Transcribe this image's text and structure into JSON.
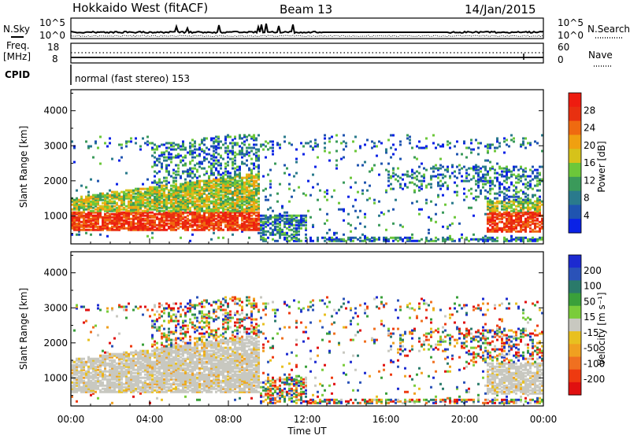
{
  "header": {
    "station": "Hokkaido West (fitACF)",
    "beam": "Beam 13",
    "date": "14/Jan/2015"
  },
  "noise_panel": {
    "left_label": "N.Sky",
    "right_label": "N.Search",
    "left_ticks": [
      "10^5",
      "10^0"
    ],
    "right_ticks": [
      "10^5",
      "10^0"
    ]
  },
  "freq_panel": {
    "label_line1": "Freq.",
    "label_line2": "[MHz]",
    "left_ticks": [
      "18",
      "8"
    ],
    "right_ticks": [
      "60",
      "0"
    ],
    "right_label": "Nave"
  },
  "cpid_panel": {
    "label": "CPID",
    "text": "normal (fast stereo) 153"
  },
  "chart_data": [
    {
      "type": "heatmap",
      "quantity": "Power",
      "ylabel": "Slant Range [km]",
      "yticks": [
        "1000",
        "2000",
        "3000",
        "4000"
      ],
      "ylim": [
        200,
        4600
      ],
      "colorbar": {
        "label": "Power [dB]",
        "ticks": [
          "4",
          "8",
          "12",
          "16",
          "20",
          "24",
          "28"
        ],
        "colors": [
          "#0a22e6",
          "#1f54b0",
          "#2a7a8c",
          "#3a9a5a",
          "#6cc73a",
          "#d6c21a",
          "#f0a010",
          "#ef6a10",
          "#e83010",
          "#ee1c10"
        ]
      }
    },
    {
      "type": "heatmap",
      "quantity": "Velocity",
      "ylabel": "Slant Range [km]",
      "yticks": [
        "1000",
        "2000",
        "3000",
        "4000"
      ],
      "ylim": [
        200,
        4600
      ],
      "xlabel": "Time UT",
      "xticks": [
        "00:00",
        "04:00",
        "08:00",
        "12:00",
        "16:00",
        "20:00",
        "00:00"
      ],
      "colorbar": {
        "label": "Velocity [m s⁻¹]",
        "ticks": [
          "200",
          "100",
          "50",
          "15",
          "-15",
          "-50",
          "-100",
          "-200"
        ],
        "colors": [
          "#1c2ad0",
          "#2a52b8",
          "#2a7a6a",
          "#3aa03a",
          "#7acc3a",
          "#c8c8c0",
          "#e8c020",
          "#f0a020",
          "#f07020",
          "#ee3a10",
          "#e01010"
        ]
      }
    }
  ]
}
